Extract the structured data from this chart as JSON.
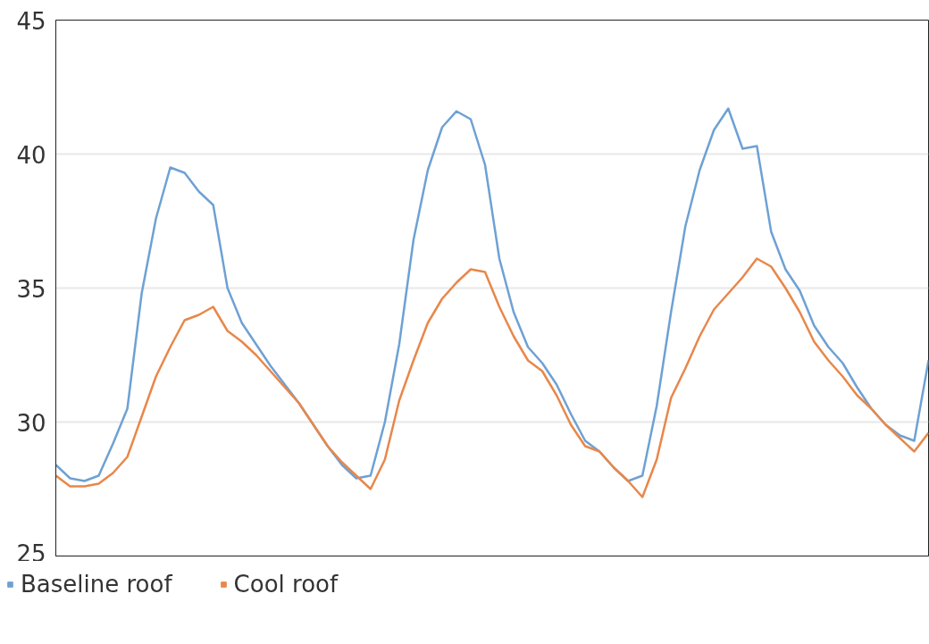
{
  "chart_data": {
    "type": "line",
    "categories": [
      null,
      null,
      null,
      null,
      null,
      null,
      null,
      null,
      null,
      null,
      null,
      null,
      null,
      null,
      null,
      null,
      null,
      null,
      null,
      null,
      null,
      null,
      null,
      null,
      null,
      null,
      null,
      null,
      null,
      null,
      null,
      null,
      null,
      null,
      null,
      null,
      null,
      null,
      null,
      null,
      null,
      null,
      null,
      null,
      null,
      null,
      null,
      null,
      null,
      null,
      null,
      null,
      null,
      null,
      null,
      null,
      null,
      null,
      null,
      null,
      null,
      null
    ],
    "series": [
      {
        "name": "Baseline roof",
        "color": "#6ea1d4",
        "values": [
          28.4,
          27.9,
          27.8,
          28.0,
          29.2,
          30.5,
          34.8,
          37.6,
          39.5,
          39.3,
          38.6,
          38.1,
          35.0,
          33.7,
          32.9,
          32.1,
          31.4,
          30.7,
          29.9,
          29.1,
          28.4,
          27.9,
          28.0,
          30.0,
          32.9,
          36.8,
          39.4,
          41.0,
          41.6,
          41.3,
          39.6,
          36.1,
          34.1,
          32.8,
          32.2,
          31.4,
          30.3,
          29.3,
          28.9,
          28.3,
          27.8,
          28.0,
          30.6,
          34.1,
          37.3,
          39.4,
          40.9,
          41.7,
          40.2,
          40.3,
          37.1,
          35.7,
          34.9,
          33.6,
          32.8,
          32.2,
          31.3,
          30.5,
          29.9,
          29.5,
          29.3,
          32.3
        ]
      },
      {
        "name": "Cool roof",
        "color": "#e8874a",
        "values": [
          28.0,
          27.6,
          27.6,
          27.7,
          28.1,
          28.7,
          30.2,
          31.7,
          32.8,
          33.8,
          34.0,
          34.3,
          33.4,
          33.0,
          32.5,
          31.9,
          31.3,
          30.7,
          29.9,
          29.1,
          28.5,
          28.0,
          27.5,
          28.6,
          30.8,
          32.3,
          33.7,
          34.6,
          35.2,
          35.7,
          35.6,
          34.3,
          33.2,
          32.3,
          31.9,
          31.0,
          29.9,
          29.1,
          28.9,
          28.3,
          27.8,
          27.2,
          28.6,
          30.9,
          32.0,
          33.2,
          34.2,
          34.8,
          35.4,
          36.1,
          35.8,
          35.0,
          34.1,
          33.0,
          32.3,
          31.7,
          31.0,
          30.5,
          29.9,
          29.4,
          28.9,
          29.6
        ]
      }
    ],
    "ylim": [
      25,
      45
    ],
    "yticks": [
      25,
      30,
      35,
      40,
      45
    ],
    "grid": "y",
    "legend": "bottom left",
    "tick_labels": "y",
    "marker": "none",
    "line_style": "solid"
  }
}
